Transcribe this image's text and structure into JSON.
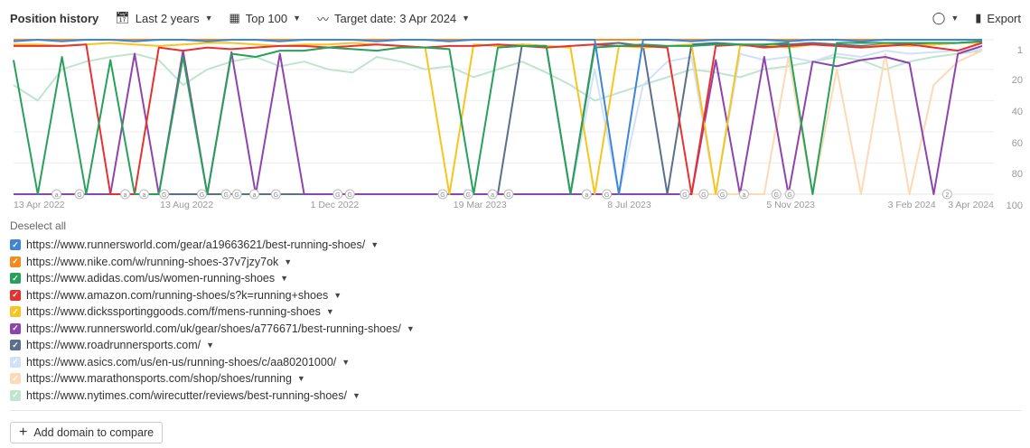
{
  "toolbar": {
    "title": "Position history",
    "range": "Last 2 years",
    "top": "Top 100",
    "target": "Target date: 3 Apr 2024",
    "export": "Export"
  },
  "deselect": "Deselect all",
  "add_domain": "Add domain to compare",
  "chart_data": {
    "type": "line",
    "ylim": [
      1,
      100
    ],
    "y_inverted": true,
    "yticks": [
      "1",
      "20",
      "40",
      "60",
      "80",
      "100"
    ],
    "x_unit": "days since 13 Apr 2022",
    "xlim": [
      0,
      722
    ],
    "xticks": [
      {
        "label": "13 Apr 2022",
        "day": 0
      },
      {
        "label": "13 Aug 2022",
        "day": 122
      },
      {
        "label": "1 Dec 2022",
        "day": 232
      },
      {
        "label": "19 Mar 2023",
        "day": 340
      },
      {
        "label": "8 Jul 2023",
        "day": 451
      },
      {
        "label": "5 Nov 2023",
        "day": 571
      },
      {
        "label": "3 Feb 2024",
        "day": 661
      },
      {
        "label": "3 Apr 2024",
        "day": 721
      }
    ],
    "sample_step_days": 18,
    "markers": [
      {
        "l": "a",
        "d": 32
      },
      {
        "l": "G",
        "d": 49
      },
      {
        "l": "a",
        "d": 83
      },
      {
        "l": "a",
        "d": 97
      },
      {
        "l": "G",
        "d": 112
      },
      {
        "l": "G",
        "d": 140
      },
      {
        "l": "G",
        "d": 158
      },
      {
        "l": "G",
        "d": 166
      },
      {
        "l": "a",
        "d": 179
      },
      {
        "l": "G",
        "d": 195
      },
      {
        "l": "G",
        "d": 241
      },
      {
        "l": "G",
        "d": 250
      },
      {
        "l": "G",
        "d": 319
      },
      {
        "l": "G",
        "d": 338
      },
      {
        "l": "a",
        "d": 356
      },
      {
        "l": "G",
        "d": 368
      },
      {
        "l": "a",
        "d": 426
      },
      {
        "l": "G",
        "d": 441
      },
      {
        "l": "G",
        "d": 499
      },
      {
        "l": "G",
        "d": 513
      },
      {
        "l": "G",
        "d": 527
      },
      {
        "l": "a",
        "d": 543
      },
      {
        "l": "G",
        "d": 567
      },
      {
        "l": "G",
        "d": 577
      },
      {
        "l": "2",
        "d": 694
      }
    ],
    "series": [
      {
        "name": "https://www.nytimes.com/wirecutter/reviews/best-running-shoes/",
        "color": "#bfe5cf",
        "values": [
          30,
          40,
          20,
          15,
          12,
          10,
          14,
          30,
          20,
          15,
          12,
          18,
          15,
          20,
          22,
          12,
          15,
          20,
          18,
          25,
          20,
          15,
          22,
          30,
          40,
          35,
          30,
          25,
          20,
          22,
          25,
          20,
          18,
          15,
          12,
          14,
          20,
          15,
          12,
          10,
          8
        ]
      },
      {
        "name": "https://www.marathonsports.com/shop/shoes/running",
        "color": "#fdd9b5",
        "values": [
          100,
          100,
          100,
          100,
          100,
          100,
          100,
          100,
          100,
          100,
          100,
          100,
          100,
          100,
          100,
          100,
          100,
          100,
          100,
          100,
          100,
          100,
          100,
          100,
          100,
          100,
          100,
          100,
          100,
          100,
          100,
          100,
          12,
          100,
          20,
          100,
          10,
          100,
          30,
          15,
          8
        ]
      },
      {
        "name": "https://www.asics.com/us/en-us/running-shoes/c/aa80201000/",
        "color": "#cfe2f7",
        "values": [
          100,
          100,
          100,
          100,
          100,
          100,
          100,
          100,
          100,
          100,
          100,
          100,
          100,
          100,
          100,
          100,
          100,
          100,
          100,
          100,
          100,
          100,
          100,
          100,
          20,
          100,
          30,
          15,
          12,
          100,
          10,
          14,
          12,
          15,
          10,
          12,
          8,
          10,
          9,
          8,
          7
        ]
      },
      {
        "name": "https://www.roadrunnersports.com/",
        "color": "#5a6f8c",
        "values": [
          100,
          100,
          100,
          100,
          100,
          100,
          100,
          100,
          100,
          100,
          100,
          100,
          100,
          100,
          100,
          100,
          100,
          100,
          100,
          100,
          100,
          4,
          5,
          100,
          4,
          3,
          5,
          100,
          4,
          3,
          4,
          5,
          4,
          3,
          4,
          5,
          4,
          3,
          4,
          3,
          2
        ]
      },
      {
        "name": "https://www.runnersworld.com/uk/gear/shoes/a776671/best-running-shoes/",
        "color": "#8e44ad",
        "values": [
          100,
          100,
          100,
          100,
          100,
          10,
          100,
          8,
          100,
          9,
          100,
          10,
          100,
          100,
          100,
          100,
          100,
          100,
          100,
          100,
          100,
          100,
          100,
          100,
          100,
          100,
          100,
          100,
          100,
          14,
          100,
          12,
          100,
          15,
          18,
          14,
          12,
          16,
          100,
          10,
          5
        ]
      },
      {
        "name": "https://www.dickssportinggoods.com/f/mens-running-shoes",
        "color": "#f7c51e",
        "values": [
          4,
          4,
          5,
          4,
          3,
          4,
          5,
          4,
          3,
          3,
          4,
          5,
          4,
          4,
          3,
          4,
          5,
          6,
          100,
          4,
          5,
          4,
          5,
          6,
          100,
          5,
          6,
          5,
          4,
          100,
          5,
          4,
          6,
          4,
          5,
          6,
          4,
          5,
          4,
          3,
          3
        ]
      },
      {
        "name": "https://www.amazon.com/running-shoes/s?k=running+shoes",
        "color": "#e8312f",
        "values": [
          5,
          5,
          5,
          4,
          100,
          100,
          6,
          8,
          6,
          7,
          6,
          5,
          5,
          6,
          5,
          4,
          5,
          6,
          5,
          5,
          4,
          5,
          6,
          5,
          4,
          5,
          5,
          6,
          100,
          5,
          4,
          6,
          5,
          4,
          5,
          6,
          5,
          4,
          6,
          8,
          3
        ]
      },
      {
        "name": "https://www.adidas.com/us/women-running-shoes",
        "color": "#27a05a",
        "values": [
          14,
          100,
          12,
          100,
          14,
          100,
          100,
          12,
          100,
          10,
          12,
          8,
          8,
          6,
          7,
          8,
          6,
          6,
          7,
          100,
          6,
          5,
          5,
          100,
          6,
          5,
          4,
          5,
          5,
          4,
          4,
          4,
          3,
          100,
          3,
          3,
          3,
          3,
          3,
          3,
          2
        ]
      },
      {
        "name": "https://www.nike.com/w/running-shoes-37v7jzy7ok",
        "color": "#f58a1f",
        "values": [
          1,
          1,
          1,
          1,
          1,
          1,
          1,
          1,
          1,
          1,
          1,
          1,
          1,
          1,
          1,
          1,
          1,
          1,
          1,
          1,
          1,
          1,
          1,
          1,
          1,
          1,
          1,
          1,
          1,
          1,
          1,
          1,
          1,
          1,
          1,
          1,
          1,
          1,
          1,
          1,
          1
        ]
      },
      {
        "name": "https://www.runnersworld.com/gear/a19663621/best-running-shoes/",
        "color": "#3d85d8",
        "values": [
          2,
          1,
          2,
          1,
          1,
          2,
          1,
          1,
          2,
          1,
          1,
          2,
          1,
          1,
          1,
          2,
          1,
          1,
          2,
          1,
          1,
          1,
          1,
          1,
          1,
          100,
          1,
          1,
          2,
          1,
          1,
          1,
          2,
          1,
          1,
          2,
          1,
          1,
          1,
          1,
          1
        ]
      }
    ]
  }
}
